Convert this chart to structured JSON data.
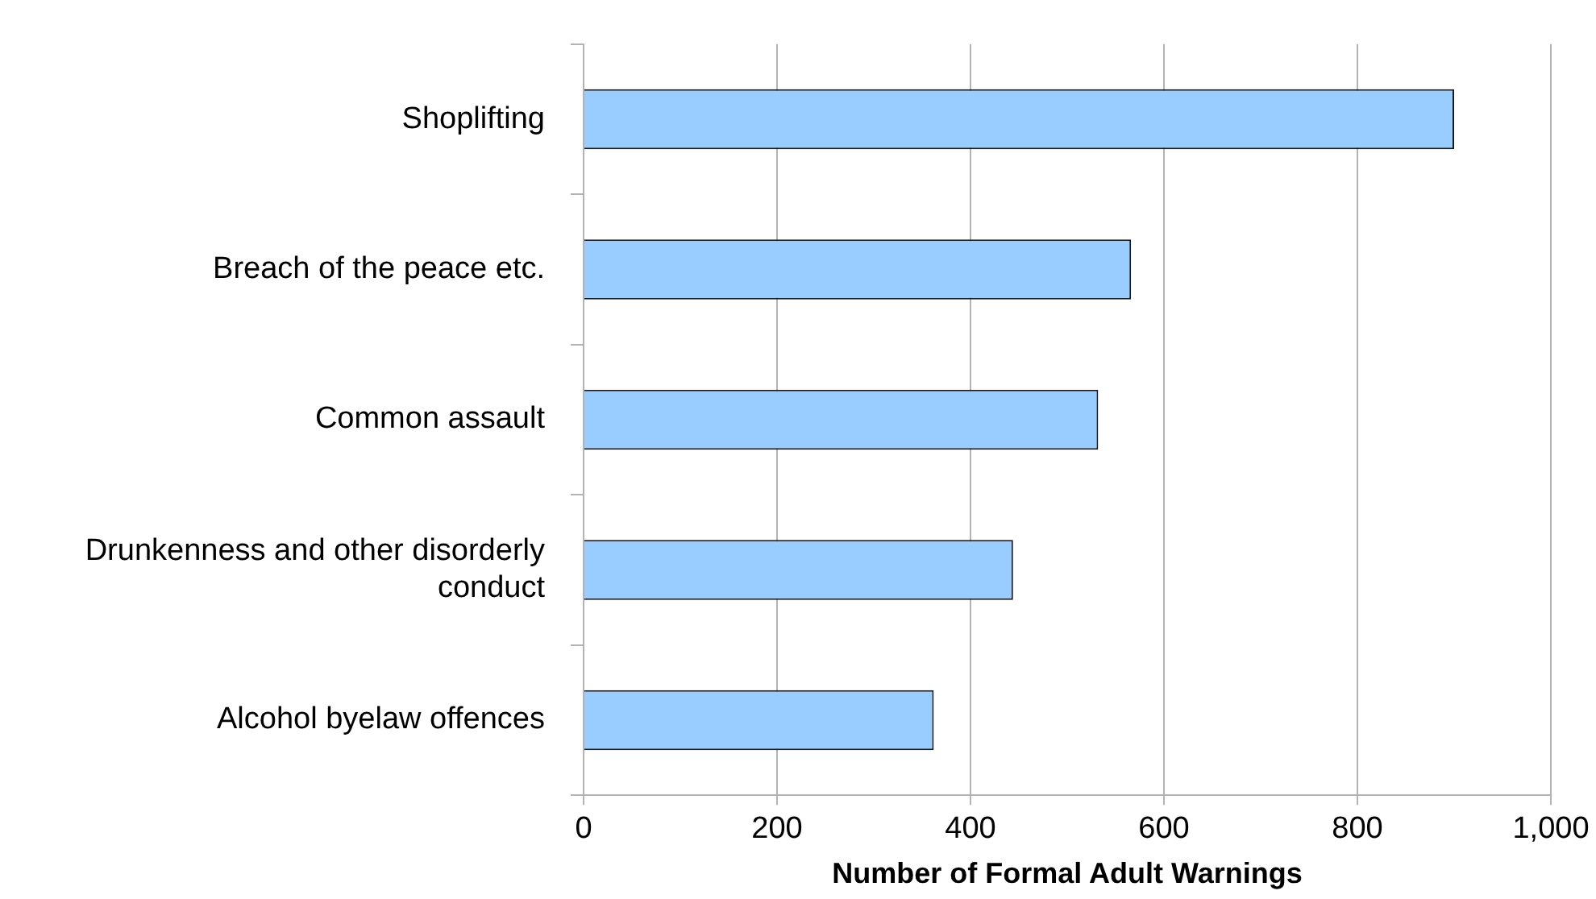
{
  "chart_data": {
    "type": "bar",
    "orientation": "horizontal",
    "xlabel": "Number of Formal Adult Warnings",
    "categories": [
      "Shoplifting",
      "Breach of the peace etc.",
      "Common assault",
      "Drunkenness and other disorderly conduct",
      "Alcohol byelaw offences"
    ],
    "values": [
      900,
      566,
      532,
      444,
      362
    ],
    "color": "#99ccff",
    "xlim": [
      0,
      1000
    ],
    "xticks": [
      0,
      200,
      400,
      600,
      800,
      {
        "value": 1000,
        "label": "1,000"
      }
    ],
    "grid": "x",
    "legend": false
  }
}
